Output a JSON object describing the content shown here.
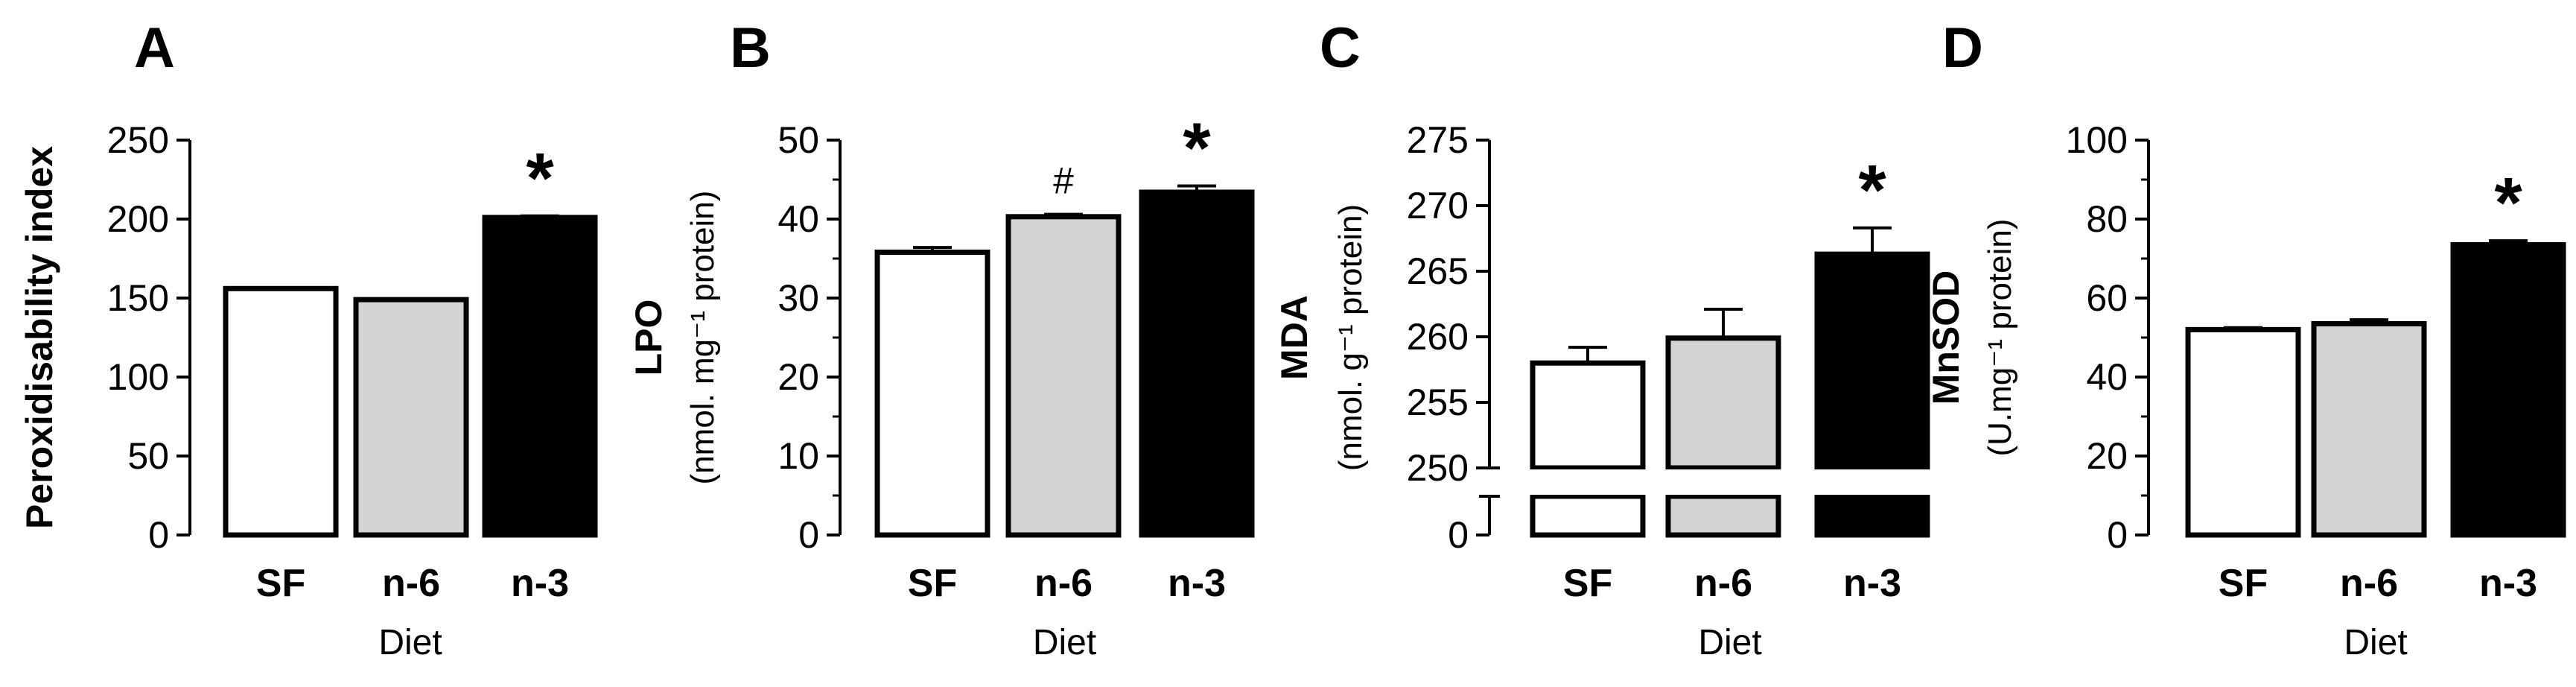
{
  "chart_data": [
    {
      "panel": "A",
      "type": "bar",
      "categories": [
        "SF",
        "n-6",
        "n-3"
      ],
      "values": [
        156,
        149,
        201
      ],
      "errors": [
        0,
        0,
        1
      ],
      "bar_colors": [
        "#ffffff",
        "#d3d3d3",
        "#000000"
      ],
      "significance": [
        "",
        "",
        "*"
      ],
      "ylabel": "Peroxidisability index",
      "ylabel_unit": "",
      "xlabel": "Diet",
      "ylim": [
        0,
        250
      ],
      "yticks": [
        0,
        50,
        100,
        150,
        200,
        250
      ],
      "ytick_labels": [
        "0",
        "50",
        "100",
        "150",
        "200",
        "250"
      ]
    },
    {
      "panel": "B",
      "type": "bar",
      "categories": [
        "SF",
        "n-6",
        "n-3"
      ],
      "values": [
        35.8,
        40.3,
        43.4
      ],
      "errors": [
        0.6,
        0.3,
        0.8
      ],
      "bar_colors": [
        "#ffffff",
        "#d3d3d3",
        "#000000"
      ],
      "significance": [
        "",
        "#",
        "*"
      ],
      "ylabel": "LPO",
      "ylabel_unit": "(nmol. mg⁻¹ protein)",
      "xlabel": "Diet",
      "ylim": [
        0,
        50
      ],
      "yticks": [
        0,
        10,
        20,
        30,
        40,
        50
      ],
      "ytick_labels": [
        "0",
        "10",
        "20",
        "30",
        "40",
        "50"
      ]
    },
    {
      "panel": "C",
      "type": "bar",
      "categories": [
        "SF",
        "n-6",
        "n-3"
      ],
      "values": [
        258,
        259.9,
        266.3
      ],
      "errors": [
        1.2,
        2.2,
        2.0
      ],
      "bar_colors": [
        "#ffffff",
        "#d3d3d3",
        "#000000"
      ],
      "significance": [
        "",
        "",
        "*"
      ],
      "ylabel": "MDA",
      "ylabel_unit": "(nmol. g⁻¹ protein)",
      "xlabel": "Diet",
      "ylim": [
        250,
        275
      ],
      "axis_break": true,
      "yticks": [
        0,
        250,
        255,
        260,
        265,
        270,
        275
      ],
      "ytick_labels": [
        "0",
        "250",
        "255",
        "260",
        "265",
        "270",
        "275"
      ]
    },
    {
      "panel": "D",
      "type": "bar",
      "categories": [
        "SF",
        "n-6",
        "n-3"
      ],
      "values": [
        52,
        53.5,
        73.5
      ],
      "errors": [
        0.5,
        1.0,
        1.0
      ],
      "bar_colors": [
        "#ffffff",
        "#d3d3d3",
        "#000000"
      ],
      "significance": [
        "",
        "",
        "*"
      ],
      "ylabel": "MnSOD",
      "ylabel_unit": "(U.mg⁻¹ protein)",
      "xlabel": "Diet",
      "ylim": [
        0,
        100
      ],
      "yticks": [
        0,
        20,
        40,
        60,
        80,
        100
      ],
      "ytick_labels": [
        "0",
        "20",
        "40",
        "60",
        "80",
        "100"
      ]
    }
  ]
}
